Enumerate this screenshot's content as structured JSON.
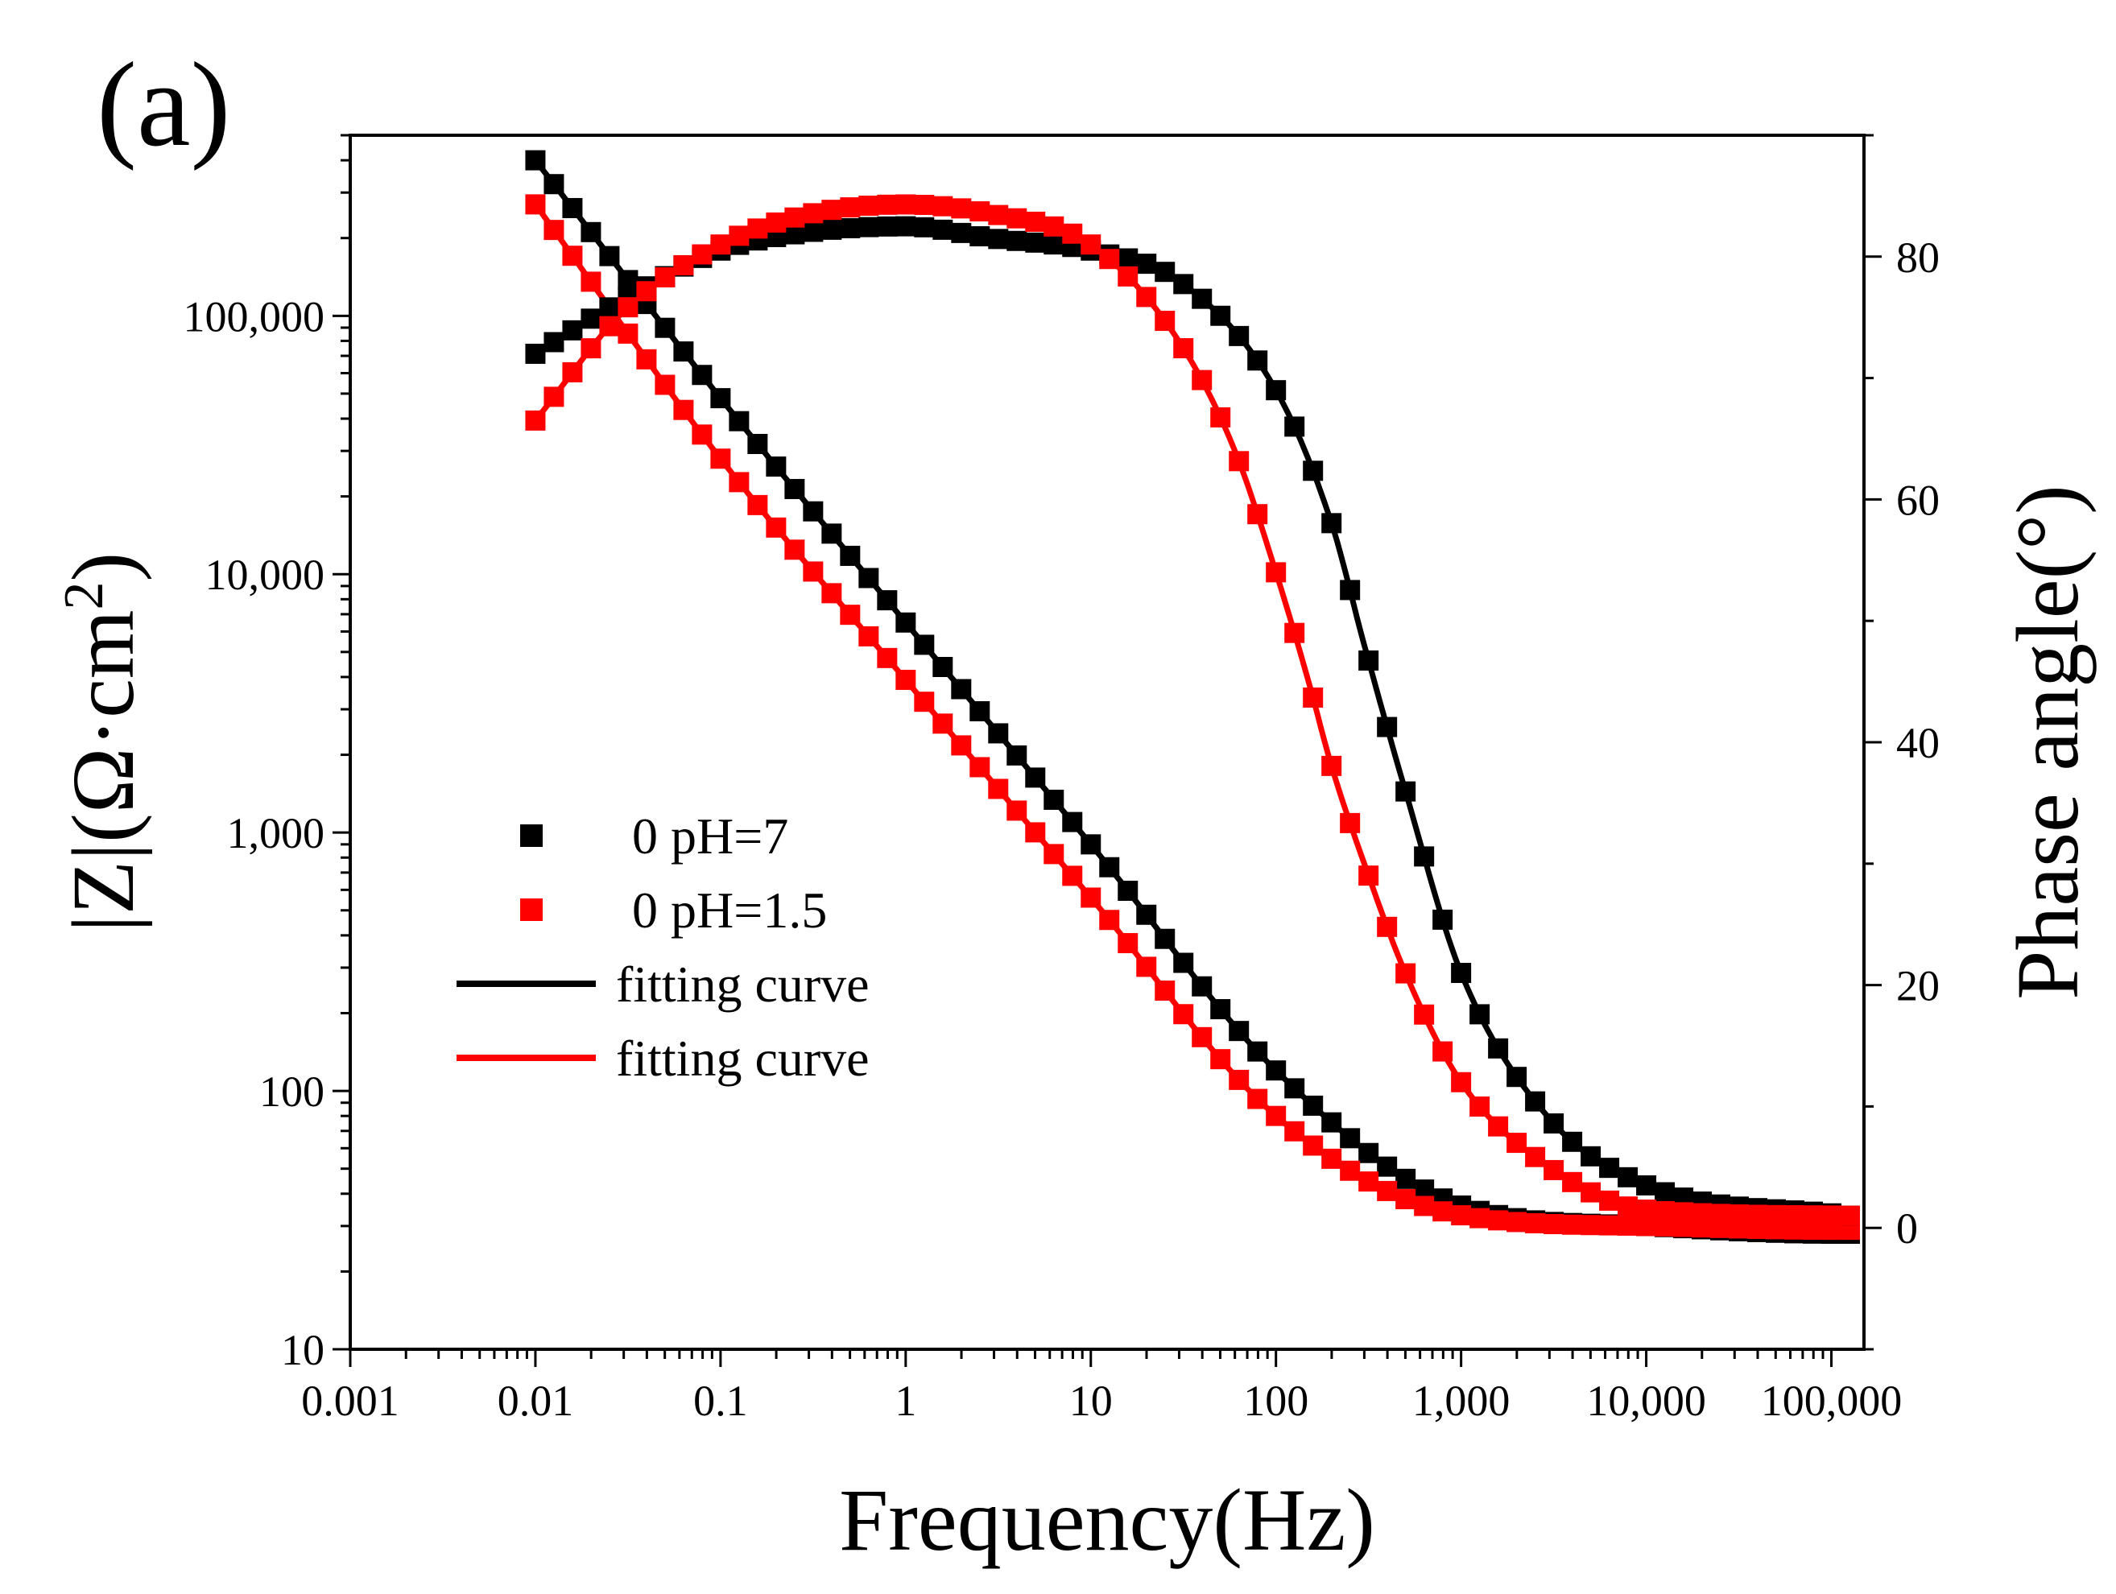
{
  "chart_data": {
    "type": "scatter",
    "panel_label": "(a)",
    "xlabel": "Frequency(Hz)",
    "ylabel_left": {
      "main": "|Z|(Ω·cm",
      "sup": "2",
      "close": ")"
    },
    "ylabel_right": "Phase angle(°)",
    "x_scale": "log",
    "xlim": [
      0.001,
      150000
    ],
    "ylim_left": [
      10,
      500000
    ],
    "y_left_scale": "log",
    "ylim_right": [
      -10,
      90
    ],
    "x_ticks": [
      {
        "value": 0.001,
        "label": "0.001"
      },
      {
        "value": 0.01,
        "label": "0.01"
      },
      {
        "value": 0.1,
        "label": "0.1"
      },
      {
        "value": 1,
        "label": "1"
      },
      {
        "value": 10,
        "label": "10"
      },
      {
        "value": 100,
        "label": "100"
      },
      {
        "value": 1000,
        "label": "1,000"
      },
      {
        "value": 10000,
        "label": "10,000"
      },
      {
        "value": 100000,
        "label": "100,000"
      }
    ],
    "y_left_ticks": [
      {
        "value": 10,
        "label": "10"
      },
      {
        "value": 100,
        "label": "100"
      },
      {
        "value": 1000,
        "label": "1,000"
      },
      {
        "value": 10000,
        "label": "10,000"
      },
      {
        "value": 100000,
        "label": "100,000"
      }
    ],
    "y_right_ticks": [
      {
        "value": 0,
        "label": "0"
      },
      {
        "value": 20,
        "label": "20"
      },
      {
        "value": 40,
        "label": "40"
      },
      {
        "value": 60,
        "label": "60"
      },
      {
        "value": 80,
        "label": "80"
      }
    ],
    "legend": [
      {
        "label": "0 pH=7",
        "kind": "marker",
        "color": "#000000"
      },
      {
        "label": "0 pH=1.5",
        "kind": "marker",
        "color": "#ff0000"
      },
      {
        "label": "fitting curve",
        "kind": "line",
        "color": "#000000"
      },
      {
        "label": "fitting curve",
        "kind": "line",
        "color": "#ff0000"
      }
    ],
    "legend_position": "lower-left",
    "series": [
      {
        "name": "0 pH=7 |Z|",
        "axis": "left",
        "color": "#000000",
        "freq": [
          0.01,
          0.1,
          1,
          10,
          100,
          1000,
          10000,
          100000,
          126000
        ],
        "values": [
          400000,
          48000,
          6500,
          900,
          120,
          36,
          30,
          28,
          28
        ]
      },
      {
        "name": "0 pH=1.5 |Z|",
        "axis": "left",
        "color": "#ff0000",
        "freq": [
          0.01,
          0.1,
          1,
          10,
          100,
          1000,
          10000,
          100000,
          126000
        ],
        "values": [
          270000,
          28000,
          3900,
          560,
          80,
          33,
          30,
          29,
          29
        ]
      },
      {
        "name": "0 pH=7 phase",
        "axis": "right",
        "color": "#000000",
        "freq": [
          0.01,
          0.03,
          0.1,
          0.3,
          1,
          3,
          10,
          30,
          100,
          200,
          300,
          500,
          1000,
          3000,
          10000,
          126000
        ],
        "values": [
          72,
          76.5,
          80.5,
          82,
          82.5,
          81.5,
          80.5,
          78,
          69,
          58,
          48,
          36,
          21,
          9,
          3.5,
          1
        ]
      },
      {
        "name": "0 pH=1.5 phase",
        "axis": "right",
        "color": "#ff0000",
        "freq": [
          0.01,
          0.03,
          0.1,
          0.3,
          1,
          3,
          10,
          30,
          60,
          100,
          150,
          200,
          300,
          500,
          1000,
          3000,
          10000,
          126000
        ],
        "values": [
          66.5,
          75.5,
          81,
          83.5,
          84.3,
          83.5,
          81,
          73,
          64,
          54,
          45,
          38,
          30,
          21,
          12,
          5,
          1.5,
          1
        ]
      }
    ]
  }
}
